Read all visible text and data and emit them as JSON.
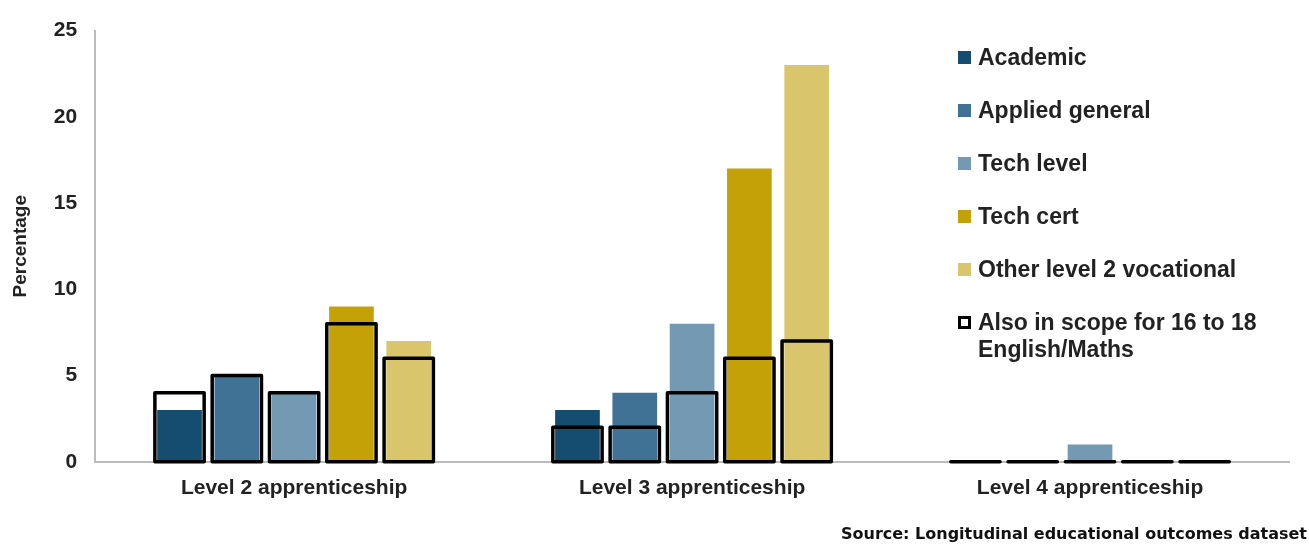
{
  "chart_data": {
    "type": "bar",
    "ylabel": "Percentage",
    "categories": [
      "Level 2 apprenticeship",
      "Level 3 apprenticeship",
      "Level 4 apprenticeship"
    ],
    "series": [
      {
        "name": "Academic",
        "color": "#144d6f",
        "values": [
          3,
          3,
          0
        ]
      },
      {
        "name": "Applied general",
        "color": "#3f7294",
        "values": [
          5,
          4,
          0
        ]
      },
      {
        "name": "Tech level",
        "color": "#7399b3",
        "values": [
          4,
          8,
          1
        ]
      },
      {
        "name": "Tech cert",
        "color": "#c4a207",
        "values": [
          9,
          17,
          0
        ]
      },
      {
        "name": "Other level 2 vocational",
        "color": "#d9c66c",
        "values": [
          7,
          23,
          0
        ]
      },
      {
        "name": "Also in scope for 16 to 18 English/Maths",
        "color": "#000000",
        "values": [
          4,
          2,
          0
        ]
      },
      {
        "color": "#000000",
        "values": [
          5,
          2,
          0
        ]
      },
      {
        "color": "#000000",
        "values": [
          4,
          4,
          0
        ]
      },
      {
        "color": "#000000",
        "values": [
          8,
          6,
          0
        ]
      },
      {
        "color": "#000000",
        "values": [
          6,
          7,
          0
        ]
      }
    ],
    "ylim": [
      0,
      25
    ],
    "yticks": [
      0,
      5,
      10,
      15,
      20,
      25
    ],
    "grid": false,
    "legend": "top right",
    "annotations": [
      "Source: Longitudinal educational outcomes dataset"
    ]
  }
}
